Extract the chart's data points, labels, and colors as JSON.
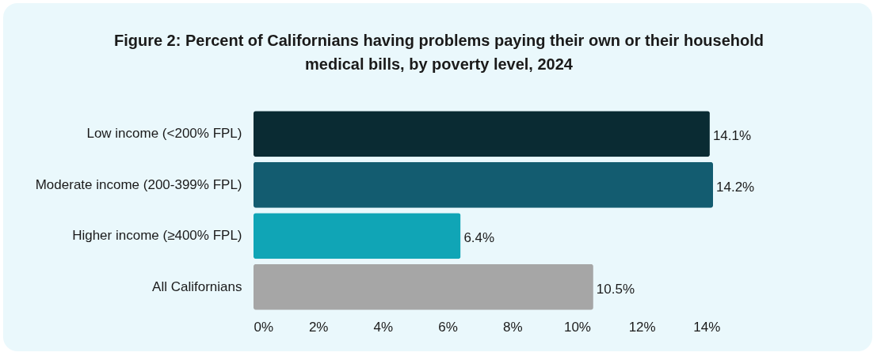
{
  "chart_data": {
    "type": "bar",
    "orientation": "horizontal",
    "title": "Figure 2: Percent of Californians having problems paying their own or their household medical bills, by poverty level, 2024",
    "categories": [
      "Low income (<200% FPL)",
      "Moderate income (200-399% FPL)",
      "Higher income (≥400% FPL)",
      "All Californians"
    ],
    "values": [
      14.1,
      14.2,
      6.4,
      10.5
    ],
    "colors": [
      "#0a2b33",
      "#135c70",
      "#10a5b6",
      "#a6a6a6"
    ],
    "value_labels": [
      "14.1%",
      "14.2%",
      "6.4%",
      "10.5%"
    ],
    "xlim": [
      0,
      14.2
    ],
    "xticks": [
      {
        "value": 0,
        "label": "0%"
      },
      {
        "value": 2,
        "label": "2%"
      },
      {
        "value": 4,
        "label": "4%"
      },
      {
        "value": 6,
        "label": "6%"
      },
      {
        "value": 8,
        "label": "8%"
      },
      {
        "value": 10,
        "label": "10%"
      },
      {
        "value": 12,
        "label": "12%"
      },
      {
        "value": 14,
        "label": "14%"
      }
    ],
    "grid": false
  }
}
